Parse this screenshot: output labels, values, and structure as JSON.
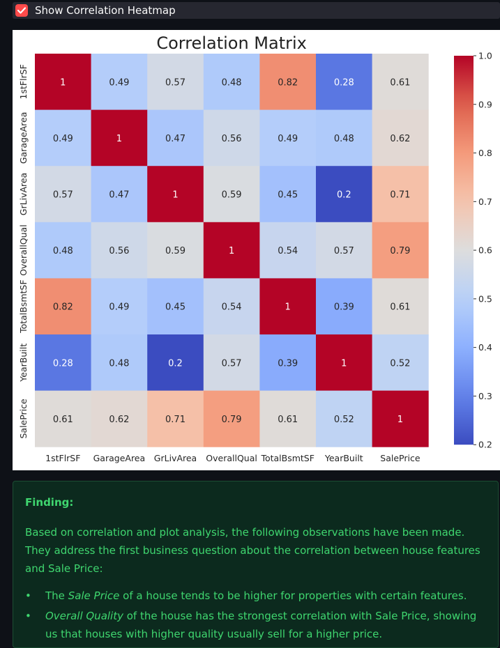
{
  "checkbox": {
    "label": "Show Correlation Heatmap",
    "checked": true,
    "accent": "#ff4b4b"
  },
  "chart_data": {
    "type": "heatmap",
    "title": "Correlation Matrix",
    "x_labels": [
      "1stFlrSF",
      "GarageArea",
      "GrLivArea",
      "OverallQual",
      "TotalBsmtSF",
      "YearBuilt",
      "SalePrice"
    ],
    "y_labels": [
      "1stFlrSF",
      "GarageArea",
      "GrLivArea",
      "OverallQual",
      "TotalBsmtSF",
      "YearBuilt",
      "SalePrice"
    ],
    "values": [
      [
        1,
        0.49,
        0.57,
        0.48,
        0.82,
        0.28,
        0.61
      ],
      [
        0.49,
        1,
        0.47,
        0.56,
        0.49,
        0.48,
        0.62
      ],
      [
        0.57,
        0.47,
        1,
        0.59,
        0.45,
        0.2,
        0.71
      ],
      [
        0.48,
        0.56,
        0.59,
        1,
        0.54,
        0.57,
        0.79
      ],
      [
        0.82,
        0.49,
        0.45,
        0.54,
        1,
        0.39,
        0.61
      ],
      [
        0.28,
        0.48,
        0.2,
        0.57,
        0.39,
        1,
        0.52
      ],
      [
        0.61,
        0.62,
        0.71,
        0.79,
        0.61,
        0.52,
        1
      ]
    ],
    "colormap": "coolwarm",
    "colorbar": {
      "min": 0.2,
      "max": 1.0,
      "ticks": [
        "1.0",
        "0.9",
        "0.8",
        "0.7",
        "0.6",
        "0.5",
        "0.4",
        "0.3",
        "0.2"
      ]
    }
  },
  "finding": {
    "title": "Finding:",
    "paragraph": "Based on correlation and plot analysis, the following observations have been made. They address the first business question about the correlation between house features and Sale Price:",
    "bullets": [
      {
        "pre": "The ",
        "em": "Sale Price",
        "post": " of a house tends to be higher for properties with certain features."
      },
      {
        "pre": "",
        "em": "Overall Quality",
        "post": " of the house has the strongest correlation with Sale Price, showing us that houses with higher quality usually sell for a higher price."
      }
    ],
    "bullet_char": "•"
  }
}
